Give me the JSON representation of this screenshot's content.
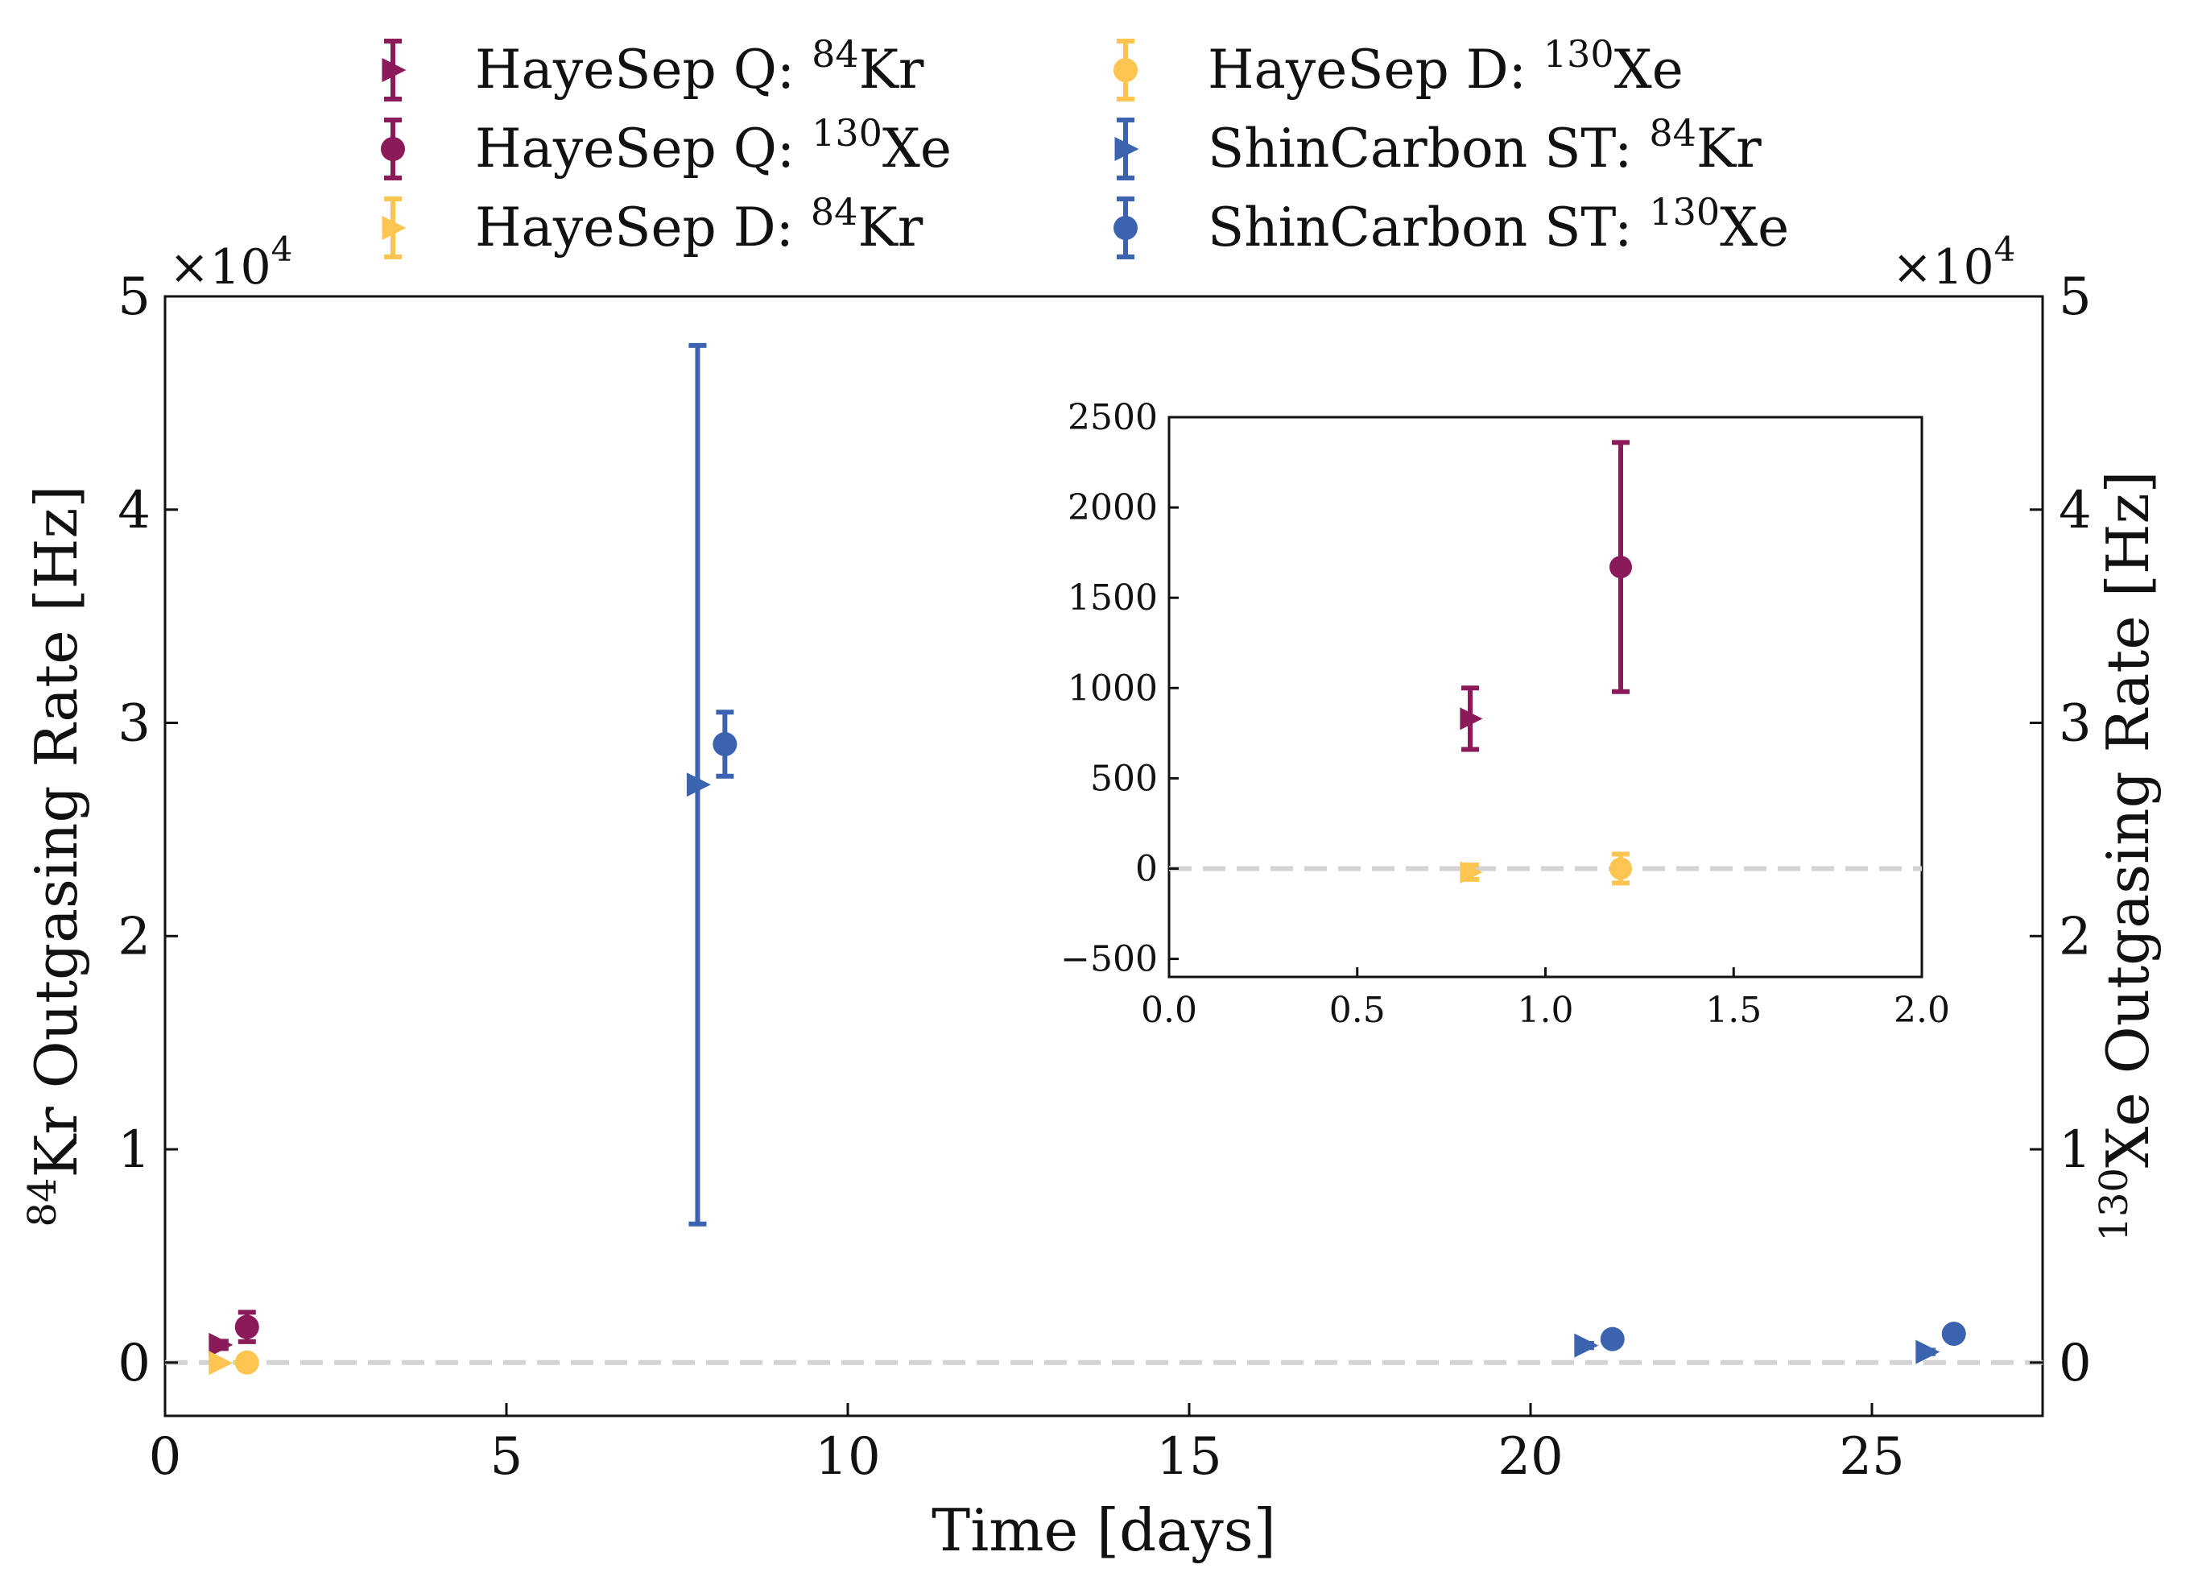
{
  "chart_data": {
    "type": "scatter",
    "title": "",
    "xlabel": "Time [days]",
    "ylabel_left": {
      "pre": "84",
      "main": "Kr Outgasing Rate [Hz]"
    },
    "ylabel_right": {
      "pre": "130",
      "main": "Xe Outgasing Rate [Hz]"
    },
    "xlim": [
      0,
      27.5
    ],
    "ylim": [
      -2500,
      50000
    ],
    "x_ticks": [
      0,
      5,
      10,
      15,
      20,
      25
    ],
    "y_ticks": [
      0,
      10000,
      20000,
      30000,
      40000,
      50000
    ],
    "y_tick_labels": [
      "0",
      "1",
      "2",
      "3",
      "4",
      "5"
    ],
    "y_multiplier": {
      "base": "×10",
      "exp": "4"
    },
    "zero_line": true,
    "legend_position": "top, above axes, two columns",
    "series": [
      {
        "name": "HayeSep Q: 84Kr",
        "label_main": "HayeSep Q: ",
        "label_sup": "84",
        "label_end": "Kr",
        "color": "#8a1a5a",
        "marker": "triangle-right",
        "points": [
          {
            "x": 0.8,
            "y": 830,
            "err": 170
          }
        ]
      },
      {
        "name": "HayeSep Q: 130Xe",
        "label_main": "HayeSep Q: ",
        "label_sup": "130",
        "label_end": "Xe",
        "color": "#8a1a5a",
        "marker": "circle",
        "points": [
          {
            "x": 1.2,
            "y": 1670,
            "err": 690
          }
        ]
      },
      {
        "name": "HayeSep D: 84Kr",
        "label_main": "HayeSep D: ",
        "label_sup": "84",
        "label_end": "Kr",
        "color": "#fcc451",
        "marker": "triangle-right",
        "points": [
          {
            "x": 0.8,
            "y": -20,
            "err": 40
          }
        ]
      },
      {
        "name": "HayeSep D: 130Xe",
        "label_main": "HayeSep D: ",
        "label_sup": "130",
        "label_end": "Xe",
        "color": "#fcc451",
        "marker": "circle",
        "points": [
          {
            "x": 1.2,
            "y": 0,
            "err": 80
          }
        ]
      },
      {
        "name": "ShinCarbon ST: 84Kr",
        "label_main": "ShinCarbon ST: ",
        "label_sup": "84",
        "label_end": "Kr",
        "color": "#3b63b0",
        "marker": "triangle-right",
        "points": [
          {
            "x": 7.8,
            "y": 27100,
            "err": 20600
          },
          {
            "x": 20.8,
            "y": 800,
            "err": 100
          },
          {
            "x": 25.8,
            "y": 500,
            "err": 80
          }
        ]
      },
      {
        "name": "ShinCarbon ST: 130Xe",
        "label_main": "ShinCarbon ST: ",
        "label_sup": "130",
        "label_end": "Xe",
        "color": "#3b63b0",
        "marker": "circle",
        "points": [
          {
            "x": 8.2,
            "y": 29000,
            "err": 1500
          },
          {
            "x": 21.2,
            "y": 1100,
            "err": 120
          },
          {
            "x": 26.2,
            "y": 1350,
            "err": 120
          }
        ]
      }
    ],
    "inset": {
      "xlim": [
        0,
        2
      ],
      "ylim": [
        -600,
        2500
      ],
      "x_ticks": [
        0,
        0.5,
        1,
        1.5,
        2
      ],
      "x_tick_labels": [
        "0.0",
        "0.5",
        "1.0",
        "1.5",
        "2.0"
      ],
      "y_ticks": [
        -500,
        0,
        500,
        1000,
        1500,
        2000,
        2500
      ],
      "y_tick_labels": [
        "−500",
        "0",
        "500",
        "1000",
        "1500",
        "2000",
        "2500"
      ],
      "series_shown": [
        "HayeSep Q: 84Kr",
        "HayeSep Q: 130Xe",
        "HayeSep D: 84Kr",
        "HayeSep D: 130Xe"
      ]
    }
  }
}
